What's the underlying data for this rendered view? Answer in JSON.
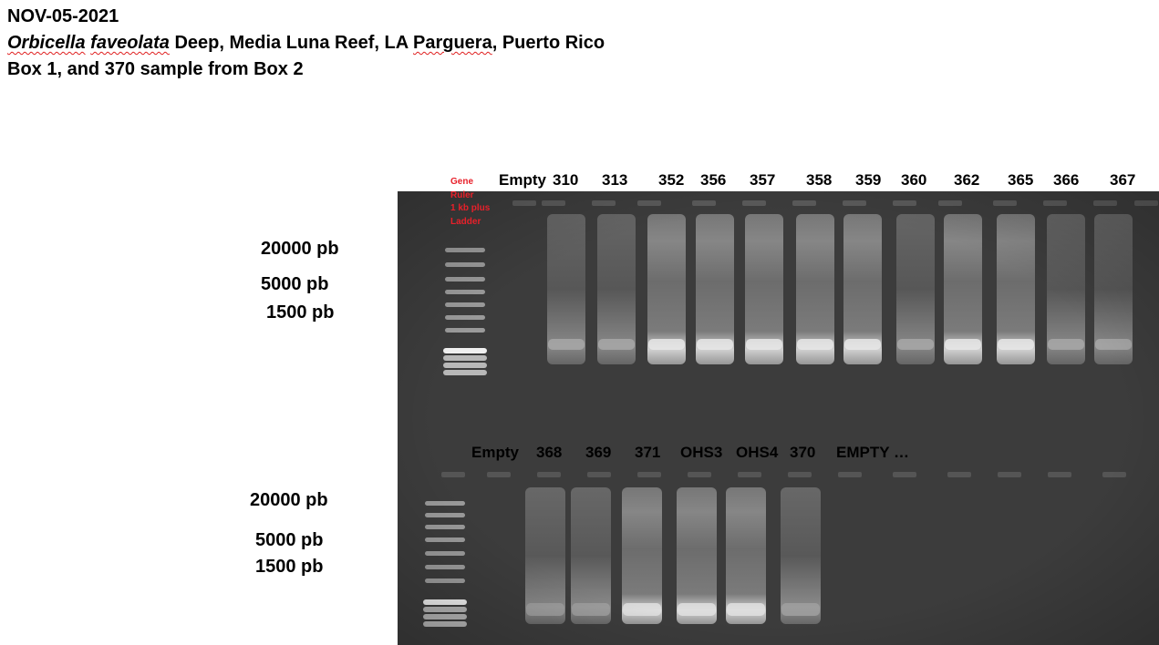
{
  "header": {
    "date": "NOV-05-2021",
    "line2_species_genus": "Orbicella",
    "line2_species_epithet": "faveolata",
    "line2_rest_a": " Deep, Media Luna Reef, LA ",
    "line2_place": "Parguera",
    "line2_rest_b": ", Puerto Rico",
    "line3": "Box 1, and 370 sample from Box 2"
  },
  "ladder_note": {
    "line1": "Gene",
    "line2": "Ruler",
    "line3": "1 kb plus",
    "line4": "Ladder"
  },
  "top_row": {
    "lanes": [
      "Empty",
      "310",
      "313",
      "352",
      "356",
      "357",
      "358",
      "359",
      "360",
      "362",
      "365",
      "366",
      "367"
    ],
    "sizes": [
      "20000 pb",
      "5000 pb",
      "1500 pb"
    ]
  },
  "bottom_row": {
    "lanes": [
      "Empty",
      "368",
      "369",
      "371",
      "OHS3",
      "OHS4",
      "370",
      "EMPTY …"
    ],
    "sizes": [
      "20000 pb",
      "5000 pb",
      "1500 pb"
    ]
  },
  "colors": {
    "gel_background": "#3c3c3c",
    "ladder_note": "#e8202a"
  }
}
